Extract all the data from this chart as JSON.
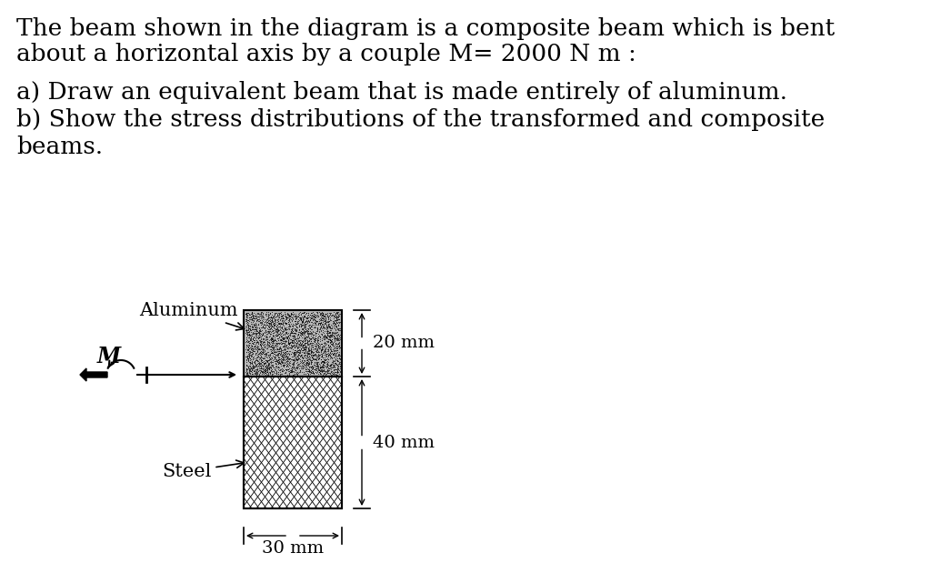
{
  "background_color": "#ffffff",
  "title_line1": "The beam shown in the diagram is a composite beam which is bent",
  "title_line2": "about a horizontal axis by a couple M= 2000 N m :",
  "part_a": "a) Draw an equivalent beam that is made entirely of aluminum.",
  "part_b1": "b) Show the stress distributions of the transformed and composite",
  "part_b2": "beams.",
  "aluminum_label": "Aluminum",
  "steel_label": "Steel",
  "moment_label": "M",
  "dim_20mm": "20 mm",
  "dim_40mm": "40 mm",
  "dim_30mm": "30 mm",
  "font_size_main": 19,
  "font_size_labels": 15,
  "font_size_dims": 14
}
